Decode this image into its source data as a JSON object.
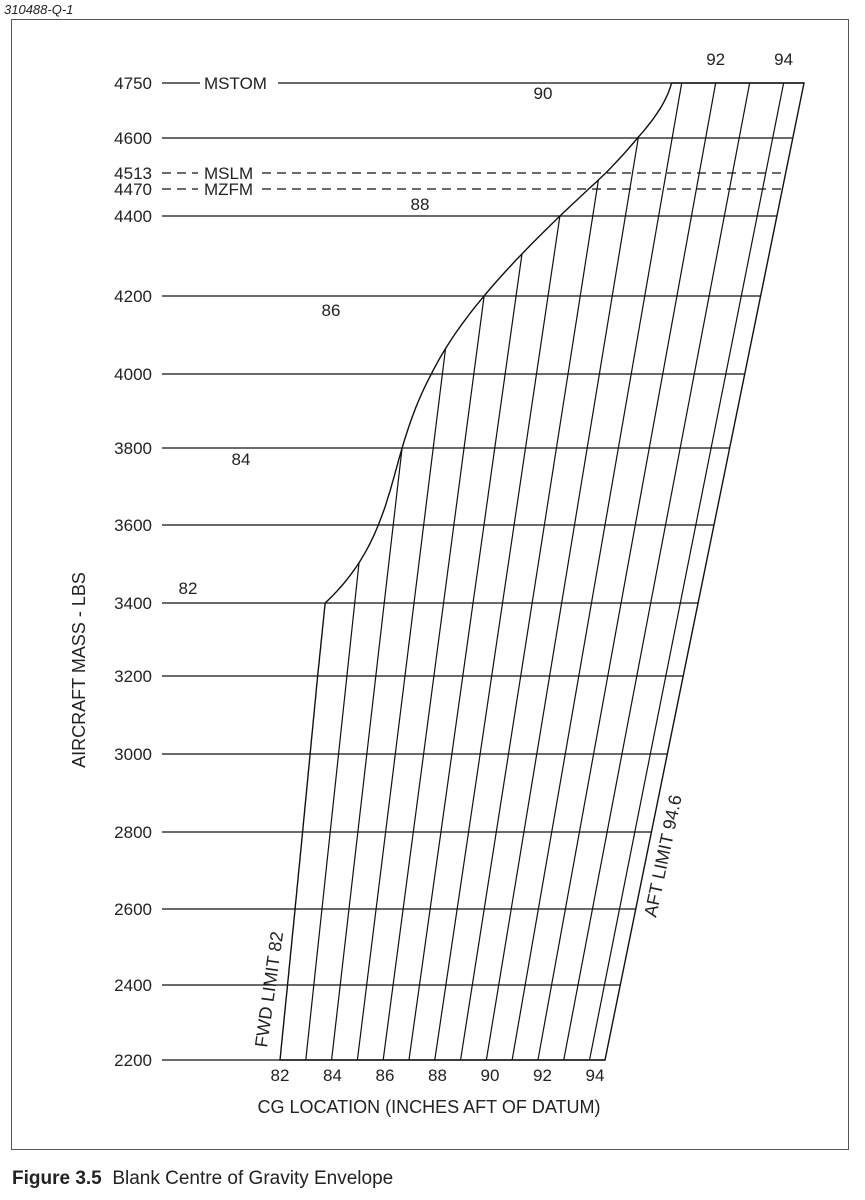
{
  "header": {
    "ref": "310488-Q-1"
  },
  "caption": {
    "number": "Figure 3.5",
    "text": "Blank Centre of Gravity Envelope"
  },
  "chart_data": {
    "type": "cg-envelope",
    "ylabel": "AIRCRAFT MASS - LBS",
    "xlabel": "CG LOCATION (INCHES AFT OF DATUM)",
    "ylim": [
      2200,
      4750
    ],
    "y_ticks": [
      2200,
      2400,
      2600,
      2800,
      3000,
      3200,
      3400,
      3600,
      3800,
      4000,
      4200,
      4400,
      4600,
      4750
    ],
    "special_lines": [
      {
        "mass": 4750,
        "label": "MSTOM",
        "style": "solid"
      },
      {
        "mass": 4513,
        "label": "MSLM",
        "style": "dashed"
      },
      {
        "mass": 4470,
        "label": "MZFM",
        "style": "dashed"
      }
    ],
    "cg_ticks": [
      {
        "cg": 82,
        "label": "82"
      },
      {
        "cg": 84,
        "label": "84"
      },
      {
        "cg": 86,
        "label": "86"
      },
      {
        "cg": 88,
        "label": "88"
      },
      {
        "cg": 90,
        "label": "90"
      },
      {
        "cg": 92,
        "label": "92"
      },
      {
        "cg": 94,
        "label": "94"
      }
    ],
    "fwd_curve": [
      {
        "mass": 3400,
        "cg": 82
      },
      {
        "mass": 3800,
        "cg": 84
      },
      {
        "mass": 4200,
        "cg": 86
      },
      {
        "mass": 4400,
        "cg": 88
      },
      {
        "mass": 4750,
        "cg": 90.7
      }
    ],
    "fwd_curve_labels": [
      {
        "mass": 3400,
        "label": "82"
      },
      {
        "mass": 3800,
        "label": "84"
      },
      {
        "mass": 4200,
        "label": "86"
      },
      {
        "mass": 4400,
        "label": "88"
      },
      {
        "mass": 4680,
        "label": "90"
      }
    ],
    "top_labels": [
      {
        "cg": 92,
        "label": "92"
      },
      {
        "cg": 94,
        "label": "94"
      }
    ],
    "fwd_limit_label": "FWD LIMIT 82",
    "aft_limit_label": "AFT LIMIT 94.6"
  }
}
